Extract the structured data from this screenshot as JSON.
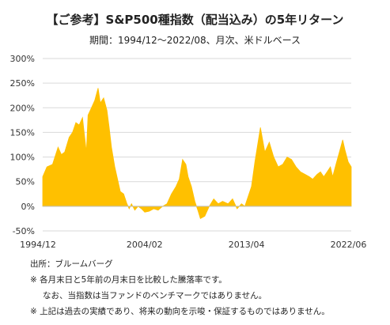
{
  "title": "【ご参考】S&P500種指数（配当込み）の5年リターン",
  "subtitle": "期間：1994/12～2022/08、月次、米ドルベース",
  "notes": [
    "出所：ブルームバーグ",
    "※ 各月末日と5年前の月末日を比較した騰落率です。",
    "なお、当指数は当ファンドのベンチマークではありません。",
    "※ 上記は過去の実績であり、将来の動向を示唆・保証するものではありません。"
  ],
  "chart_data": {
    "type": "area",
    "color": "#FFC000",
    "ylim": [
      -50,
      300
    ],
    "yticks": [
      -50,
      0,
      50,
      100,
      150,
      200,
      250,
      300
    ],
    "ytick_labels": [
      "-50%",
      "0%",
      "50%",
      "100%",
      "150%",
      "200%",
      "250%",
      "300%"
    ],
    "xlim": [
      1994.92,
      2022.67
    ],
    "xticks": [
      1994.92,
      2004.08,
      2013.25,
      2022.42
    ],
    "xtick_labels": [
      "1994/12",
      "2004/02",
      "2013/04",
      "2022/06"
    ],
    "grid": true,
    "series": [
      {
        "x": [
          1994.92,
          1995.3,
          1995.8,
          1996.3,
          1996.6,
          1996.9,
          1997.3,
          1997.6,
          1997.9,
          1998.2,
          1998.5,
          1998.7,
          1998.85,
          1999.0,
          1999.3,
          1999.6,
          1999.9,
          2000.1,
          2000.4,
          2000.7,
          2000.9,
          2001.1,
          2001.4,
          2001.7,
          2001.9,
          2002.2,
          2002.5,
          2002.7,
          2002.9,
          2003.2,
          2003.5,
          2003.8,
          2004.1,
          2004.5,
          2004.9,
          2005.3,
          2005.7,
          2006.1,
          2006.5,
          2006.9,
          2007.2,
          2007.5,
          2007.8,
          2008.0,
          2008.3,
          2008.6,
          2008.9,
          2009.1,
          2009.5,
          2009.9,
          2010.3,
          2010.7,
          2011.1,
          2011.6,
          2012.0,
          2012.4,
          2012.8,
          2013.1,
          2013.4,
          2013.7,
          2014.0,
          2014.5,
          2014.9,
          2015.3,
          2015.7,
          2016.1,
          2016.5,
          2016.9,
          2017.3,
          2017.7,
          2018.1,
          2018.5,
          2018.9,
          2019.2,
          2019.6,
          2019.9,
          2020.2,
          2020.5,
          2020.8,
          2021.0,
          2021.3,
          2021.6,
          2021.9,
          2022.1,
          2022.4,
          2022.67
        ],
        "y": [
          60,
          80,
          85,
          120,
          105,
          110,
          140,
          150,
          170,
          165,
          180,
          140,
          110,
          185,
          200,
          215,
          240,
          210,
          220,
          195,
          160,
          120,
          80,
          50,
          30,
          25,
          5,
          -5,
          5,
          -8,
          0,
          -5,
          -12,
          -10,
          -5,
          -8,
          0,
          5,
          25,
          40,
          55,
          95,
          85,
          60,
          40,
          10,
          -10,
          -25,
          -20,
          0,
          15,
          5,
          10,
          5,
          15,
          -5,
          5,
          0,
          20,
          40,
          90,
          160,
          110,
          130,
          100,
          80,
          85,
          100,
          95,
          80,
          70,
          65,
          60,
          55,
          65,
          70,
          60,
          70,
          80,
          60,
          85,
          110,
          135,
          115,
          90,
          80
        ]
      }
    ]
  }
}
